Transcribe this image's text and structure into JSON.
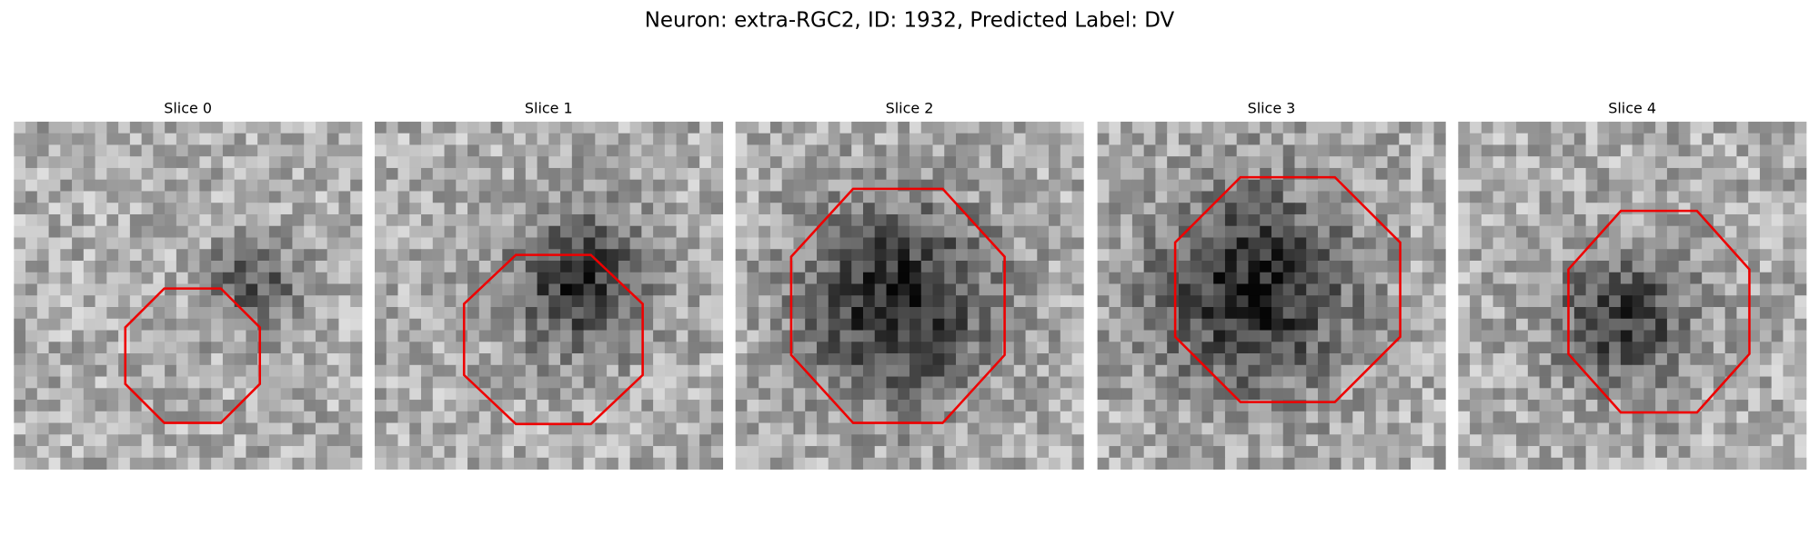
{
  "title": "Neuron: extra-RGC2, ID: 1932, Predicted Label: DV",
  "panels": [
    {
      "label": "Slice 0"
    },
    {
      "label": "Slice 1"
    },
    {
      "label": "Slice 2"
    },
    {
      "label": "Slice 3"
    },
    {
      "label": "Slice 4"
    }
  ]
}
